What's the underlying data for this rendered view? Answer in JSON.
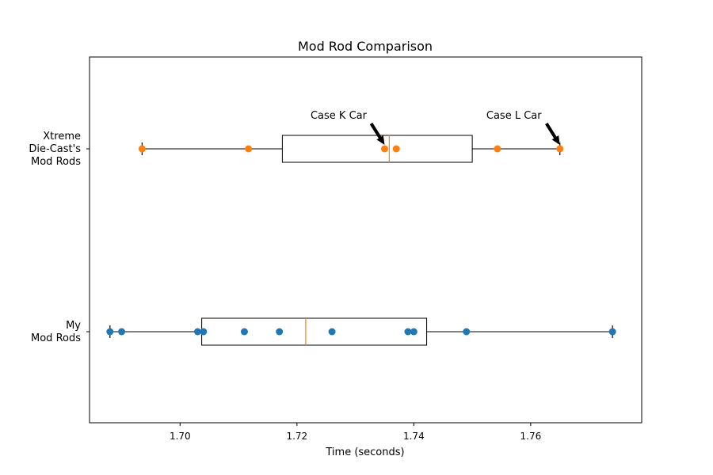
{
  "chart_data": {
    "type": "boxplot",
    "orientation": "horizontal",
    "title": "Mod Rod Comparison",
    "xlabel": "Time (seconds)",
    "ylabel": "",
    "xlim": [
      1.6845,
      1.779
    ],
    "xticks": [
      1.7,
      1.72,
      1.74,
      1.76
    ],
    "xtick_labels": [
      "1.70",
      "1.72",
      "1.74",
      "1.76"
    ],
    "grid": false,
    "categories": [
      {
        "label_lines": [
          "My",
          "Mod Rods"
        ],
        "color": "#1f77b4",
        "box": {
          "whisker_low": 1.688,
          "q1": 1.7037,
          "median": 1.7215,
          "q3": 1.7422,
          "whisker_high": 1.774
        },
        "points": [
          1.688,
          1.69,
          1.703,
          1.704,
          1.711,
          1.717,
          1.726,
          1.739,
          1.74,
          1.749,
          1.774
        ]
      },
      {
        "label_lines": [
          "Xtreme",
          "Die-Cast's",
          "Mod Rods"
        ],
        "color": "#ff7f0e",
        "box": {
          "whisker_low": 1.6935,
          "q1": 1.7175,
          "median": 1.7358,
          "q3": 1.75,
          "whisker_high": 1.765
        },
        "points": [
          1.6935,
          1.7117,
          1.735,
          1.737,
          1.7543,
          1.765
        ]
      }
    ],
    "annotations": [
      {
        "text": "Case K Car",
        "series": 1,
        "x": 1.735
      },
      {
        "text": "Case L Car",
        "series": 1,
        "x": 1.765
      }
    ],
    "colors": {
      "median": "#ff7f0e",
      "box": "#000000",
      "arrow": "#000000"
    }
  }
}
